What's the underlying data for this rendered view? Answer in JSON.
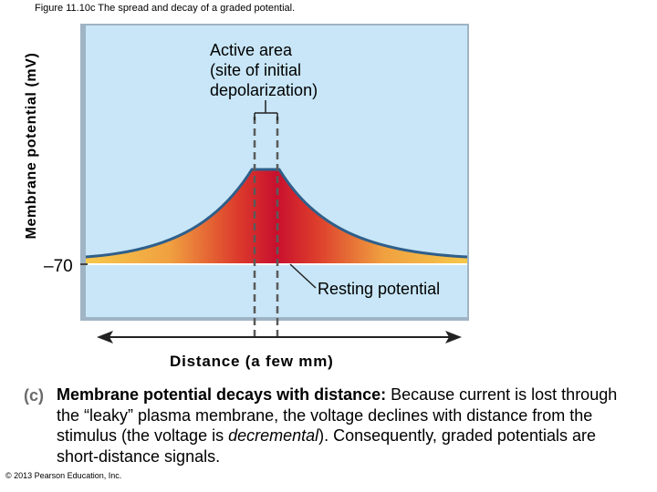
{
  "figure_title": "Figure 11.10c The spread and decay of a graded potential.",
  "y_axis_label": "Membrane potential (mV)",
  "y_tick_label": "–70",
  "active_area_label": [
    "Active area",
    "(site of initial",
    "depolarization)"
  ],
  "resting_label": "Resting potential",
  "x_axis_label": "Distance (a few mm)",
  "caption": {
    "letter": "(c)",
    "heading": "Membrane potential decays with distance:",
    "text_1": " Because current is lost through the “leaky” plasma membrane, the voltage declines with distance from the stimulus (the voltage is ",
    "italic_word": "decremental",
    "text_2": "). Consequently, graded potentials are short-distance signals."
  },
  "copyright": "© 2013 Pearson Education, Inc.",
  "colors": {
    "plot_background": "#c8e6f7",
    "curve_line": "#2f5f8a",
    "peak_color": "#c8102e",
    "edge_color": "#f4b342"
  }
}
